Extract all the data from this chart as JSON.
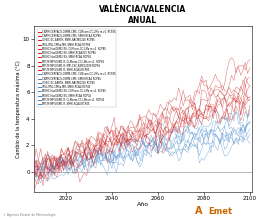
{
  "title": "VALÈNCIA/VALENCIA",
  "subtitle": "ANUAL",
  "xlabel": "Año",
  "ylabel": "Cambio de la temperatura máxima (°C)",
  "xlim": [
    2006,
    2101
  ],
  "ylim": [
    -1.5,
    11
  ],
  "xticks": [
    2020,
    2040,
    2060,
    2080,
    2100
  ],
  "yticks": [
    0,
    2,
    4,
    6,
    8,
    10
  ],
  "x_start": 2006,
  "x_end": 2100,
  "n_red_series": 10,
  "n_blue_series": 8,
  "red_color": "#cc2222",
  "blue_color": "#4488cc",
  "background": "#ffffff",
  "legend_entries_red": [
    "CNRM-CERFACS-CNRM-CM5, CLMcom-CC-LMa re v1  RCP85",
    "CNRM-CERFACS-CNRM-CM5, SMHI-RCA4 RCP85",
    "ICHEC-EC-EARTH, KNMI-RACMO22E RCP85",
    "IPSL-IPSL-CM5a-MR, SMHI-RCA4 RCP85",
    "MOHC-HadGEM2-ES, CLMcom-CC-LMa re v1  RCP85",
    "MOHC-HadGEM2-ES, SMHI-RCA4015 RCP85",
    "MOHC-HadGEM2-ES, SMHI-RCA4 RCP85",
    "MPI-M-MPI-ESM1-R, CLMcom-CC-LMa re v1  RCP85",
    "MPI-M-MPI-ESM1-R, MPI-CSC-REMO2009 RCP85",
    "MPI-M-MPI-ESM1-R, SMHI-RCA4 RCP85"
  ],
  "legend_entries_blue": [
    "CNRM-CERFACS-CNRM-CM5, CLMcom-CC-LMa re v1  RCP45",
    "CNRM-CERFACS-CNRM-CM5, SMHI-RCA4 RCP45",
    "ICHEC-EC-EARTH, KNMI-RACMO22E RCP45",
    "IPSL-IPSL-CM5a-MR, SMHI-RCA4 RCP45",
    "MOHC-HadGEM2-ES, CLMcom-CC-LMa re v1  RCP45",
    "MOHC-HadGEM2-ES, SMHI-RCA4 RCP45",
    "MPI-M-MPI-ESM1-R, CLMcom-CC-LMa re v1  RCP45",
    "MPI-M-MPI-ESM1-R, SMHI-RCA4 RCP45"
  ],
  "footer": "© Agencia Estatal de Meteorología"
}
